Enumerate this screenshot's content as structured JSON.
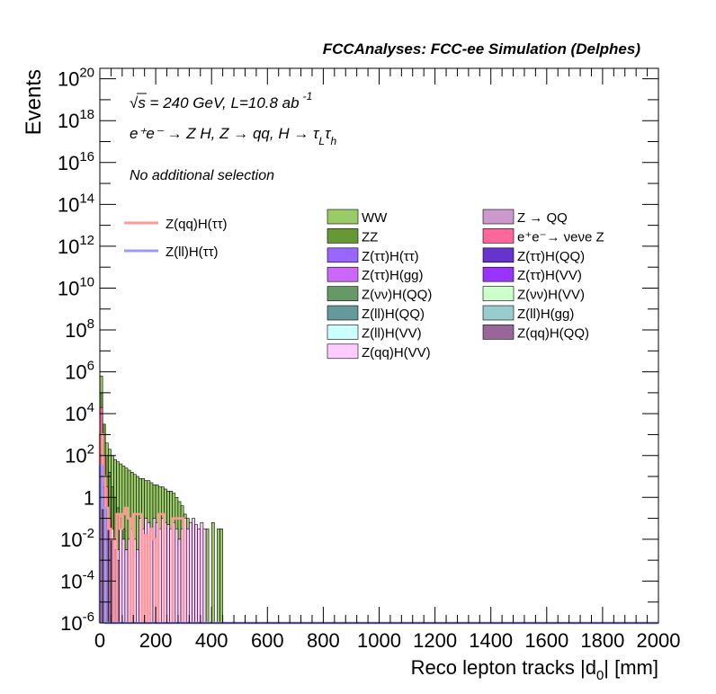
{
  "header": {
    "title": "FCCAnalyses: FCC-ee Simulation (Delphes)"
  },
  "annotations": {
    "energy_line": "√s = 240 GeV, L=10.8 ab",
    "energy_exp": "-1",
    "process_line": "e⁺e⁻ → Z H, Z → qq, H → τ",
    "process_sub1": "L",
    "process_tau": "τ",
    "process_sub2": "h",
    "selection": "No additional selection"
  },
  "chart_data": {
    "type": "bar",
    "title": "FCCAnalyses: FCC-ee Simulation (Delphes)",
    "xlabel": "Reco lepton tracks |d0| [mm]",
    "xlabel_main": "Reco lepton tracks |d",
    "xlabel_sub": "0",
    "xlabel_tail": "| [mm]",
    "ylabel": "Events",
    "xlim": [
      0,
      2000
    ],
    "ylim_log10": [
      -6,
      20.5
    ],
    "log_y": true,
    "grid": false,
    "legend_position": "top-right",
    "x_ticks": [
      0,
      200,
      400,
      600,
      800,
      1000,
      1200,
      1400,
      1600,
      1800,
      2000
    ],
    "y_ticks": [
      {
        "base": "10",
        "exp": "-6",
        "log": -6
      },
      {
        "base": "10",
        "exp": "-4",
        "log": -4
      },
      {
        "base": "10",
        "exp": "-2",
        "log": -2
      },
      {
        "base": "1",
        "exp": "",
        "log": 0
      },
      {
        "base": "10",
        "exp": "2",
        "log": 2
      },
      {
        "base": "10",
        "exp": "4",
        "log": 4
      },
      {
        "base": "10",
        "exp": "6",
        "log": 6
      },
      {
        "base": "10",
        "exp": "8",
        "log": 8
      },
      {
        "base": "10",
        "exp": "10",
        "log": 10
      },
      {
        "base": "10",
        "exp": "12",
        "log": 12
      },
      {
        "base": "10",
        "exp": "14",
        "log": 14
      },
      {
        "base": "10",
        "exp": "16",
        "log": 16
      },
      {
        "base": "10",
        "exp": "18",
        "log": 18
      },
      {
        "base": "10",
        "exp": "20",
        "log": 20
      }
    ],
    "bin_width": 10,
    "stack_series": [
      {
        "name": "WW",
        "color": "#99cc66",
        "bins_log10": [
          5.8,
          3.2,
          2.6,
          2.3,
          2.0,
          1.8,
          1.7,
          1.6,
          1.5,
          1.4,
          1.3,
          1.2,
          1.1,
          1.0,
          0.9,
          0.9,
          0.8,
          0.8,
          0.7,
          0.6,
          0.6,
          0.5,
          0.5,
          0.4,
          0.3,
          0.3,
          0.2,
          0.0,
          -0.2,
          -0.4,
          -0.8,
          -1.0,
          -1.2,
          -1.5,
          -1.8,
          -2.0,
          -2.2,
          -2.5,
          -1.5,
          -6,
          -1.2,
          -6,
          -1.5,
          -1.5,
          -6,
          -6,
          -6,
          -6,
          -6,
          -6,
          -6,
          -6,
          -6,
          -6,
          -6,
          -6,
          -6,
          -6,
          -6,
          -6,
          -6,
          -6,
          -6,
          -6,
          -6,
          -6,
          -6,
          -6,
          -6,
          -6,
          -6,
          -6,
          -6,
          -6,
          -6,
          -6,
          -6,
          -6,
          -6,
          -6,
          -6,
          -6,
          -6,
          -6,
          -6,
          -6,
          -6,
          -6,
          -6,
          -6,
          -6,
          -6,
          -6,
          -6,
          -6,
          -6,
          -6,
          -6,
          -6,
          -6,
          -6,
          -6,
          -6,
          -6,
          -6,
          -6,
          -6,
          -6,
          -6,
          -6,
          -6,
          -6,
          -6,
          -6,
          -6,
          -6,
          -6,
          -6,
          -6,
          -6
        ]
      },
      {
        "name": "ZZ",
        "color": "#669933",
        "bins_log10": [
          5.0,
          3.5,
          2.0,
          1.2,
          0.5,
          0.0,
          -0.5,
          -1.0,
          -1.5,
          -2.5,
          -3.0,
          -6,
          -6,
          -6,
          -6,
          -6,
          -6,
          -6,
          -6,
          -6,
          -6,
          -6,
          -6,
          -6,
          -6,
          -6,
          -6,
          -6,
          -6,
          -6,
          -6,
          -6,
          -6,
          -6,
          -6,
          -6,
          -6,
          -6,
          -6,
          -6,
          -6,
          -6,
          -6,
          -6,
          -6,
          -6,
          -6,
          -6,
          -6,
          -6,
          -6,
          -6,
          -6,
          -6,
          -6,
          -6,
          -6,
          -6,
          -6,
          -6,
          -6,
          -6,
          -6,
          -6,
          -6,
          -6,
          -6,
          -6,
          -6,
          -6,
          -6,
          -6,
          -6,
          -6,
          -6,
          -6,
          -6,
          -6,
          -6,
          -6,
          -6,
          -6,
          -6,
          -6,
          -6,
          -6,
          -6,
          -6,
          -6,
          -6,
          -6,
          -6,
          -6,
          -6,
          -6,
          -6,
          -6,
          -6,
          -6,
          -6,
          -6,
          -6,
          -6,
          -6,
          -6,
          -6,
          -6,
          -6,
          -6,
          -6,
          -6,
          -6,
          -6,
          -6,
          -6,
          -6,
          -6,
          -6,
          -6,
          -6
        ]
      },
      {
        "name": "Z(ττ)H(ττ)",
        "color": "#9966ff",
        "bins_log10": [
          1.5,
          0.5,
          -1.0,
          -2.0,
          -6,
          -6,
          -6,
          -6,
          -6,
          -6,
          -6,
          -6,
          -6,
          -6,
          -6,
          -6,
          -6,
          -6,
          -6,
          -6,
          -6,
          -6,
          -6,
          -6,
          -6,
          -6,
          -6,
          -6,
          -6,
          -6,
          -6,
          -6,
          -6,
          -6,
          -6,
          -6,
          -6,
          -6,
          -6,
          -6,
          -6,
          -6,
          -6,
          -6,
          -6,
          -6,
          -6,
          -6,
          -6,
          -6,
          -6,
          -6,
          -6,
          -6,
          -6,
          -6,
          -6,
          -6,
          -6,
          -6,
          -6,
          -6,
          -6,
          -6,
          -6,
          -6,
          -6,
          -6,
          -6,
          -6,
          -6,
          -6,
          -6,
          -6,
          -6,
          -6,
          -6,
          -6,
          -6,
          -6,
          -6,
          -6,
          -6,
          -6,
          -6,
          -6,
          -6,
          -6,
          -6,
          -6,
          -6,
          -6,
          -6,
          -6,
          -6,
          -6,
          -6,
          -6,
          -6,
          -6,
          -6,
          -6,
          -6,
          -6,
          -6,
          -6,
          -6,
          -6,
          -6,
          -6,
          -6,
          -6,
          -6,
          -6,
          -6,
          -6,
          -6,
          -6,
          -6,
          -6
        ]
      },
      {
        "name": "Z(qq)H(VV)",
        "color": "#ffccff",
        "bins_log10": [
          3.8,
          1.5,
          0.0,
          -1.0,
          -1.5,
          -2.0,
          -2.5,
          -1.5,
          -2.0,
          -2.5,
          -2.0,
          -1.5,
          -2.0,
          -2.5,
          -1.0,
          -1.5,
          -1.0,
          -1.2,
          -1.5,
          -1.0,
          -1.2,
          -1.5,
          -1.0,
          -1.2,
          -1.3,
          -1.5,
          -1.2,
          -1.5,
          -2.0,
          -1.5,
          -1.0,
          -1.5,
          -1.2,
          -1.0,
          -1.3,
          -1.5,
          -1.2,
          -1.5,
          -6,
          -6,
          -6,
          -6,
          -6,
          -6,
          -6,
          -6,
          -6,
          -6,
          -6,
          -6,
          -6,
          -6,
          -6,
          -6,
          -6,
          -6,
          -6,
          -6,
          -6,
          -6,
          -6,
          -6,
          -6,
          -6,
          -6,
          -6,
          -6,
          -6,
          -6,
          -6,
          -6,
          -6,
          -6,
          -6,
          -6,
          -6,
          -6,
          -6,
          -6,
          -6,
          -6,
          -6,
          -6,
          -6,
          -6,
          -6,
          -6,
          -6,
          -6,
          -6,
          -6,
          -6,
          -6,
          -6,
          -6,
          -6,
          -6,
          -6,
          -6,
          -6,
          -6,
          -6,
          -6,
          -6,
          -6,
          -6,
          -6,
          -6,
          -6,
          -6,
          -6,
          -6,
          -6,
          -6,
          -6,
          -6,
          -6,
          -6,
          -6,
          -6
        ]
      },
      {
        "name": "e⁺e⁻→ νeνe Z",
        "color": "#ff6699",
        "bins_log10": [
          4.3,
          2.0,
          0.5,
          -1.0,
          -2.0,
          -6,
          -6,
          -6,
          -6,
          -6,
          -6,
          -6,
          -6,
          -6,
          -6,
          -6,
          -6,
          -6,
          -6,
          -6,
          -6,
          -6,
          -6,
          -6,
          -6,
          -6,
          -6,
          -6,
          -6,
          -6,
          -6,
          -6,
          -6,
          -6,
          -6,
          -6,
          -6,
          -6,
          -6,
          -6,
          -6,
          -6,
          -6,
          -6,
          -6,
          -6,
          -6,
          -6,
          -6,
          -6,
          -6,
          -6,
          -6,
          -6,
          -6,
          -6,
          -6,
          -6,
          -6,
          -6,
          -6,
          -6,
          -6,
          -6,
          -6,
          -6,
          -6,
          -6,
          -6,
          -6,
          -6,
          -6,
          -6,
          -6,
          -6,
          -6,
          -6,
          -6,
          -6,
          -6,
          -6,
          -6,
          -6,
          -6,
          -6,
          -6,
          -6,
          -6,
          -6,
          -6,
          -6,
          -6,
          -6,
          -6,
          -6,
          -6,
          -6,
          -6,
          -6,
          -6,
          -6,
          -6,
          -6,
          -6,
          -6,
          -6,
          -6,
          -6,
          -6,
          -6,
          -6,
          -6,
          -6,
          -6,
          -6,
          -6,
          -6,
          -6,
          -6,
          -6
        ]
      },
      {
        "name": "Z(qq)H(QQ)",
        "color": "#996699",
        "bins_log10": [
          2.0,
          0.5,
          -0.5,
          -1.5,
          -2.0,
          -2.5,
          -3.0,
          -6,
          -6,
          -6,
          -6,
          -6,
          -6,
          -6,
          -6,
          -6,
          -6,
          -6,
          -6,
          -6,
          -6,
          -6,
          -6,
          -6,
          -6,
          -6,
          -6,
          -6,
          -6,
          -6,
          -6,
          -6,
          -6,
          -6,
          -6,
          -6,
          -6,
          -6,
          -6,
          -6,
          -6,
          -6,
          -6,
          -6,
          -6,
          -6,
          -6,
          -6,
          -6,
          -6,
          -6,
          -6,
          -6,
          -6,
          -6,
          -6,
          -6,
          -6,
          -6,
          -6,
          -6,
          -6,
          -6,
          -6,
          -6,
          -6,
          -6,
          -6,
          -6,
          -6,
          -6,
          -6,
          -6,
          -6,
          -6,
          -6,
          -6,
          -6,
          -6,
          -6,
          -6,
          -6,
          -6,
          -6,
          -6,
          -6,
          -6,
          -6,
          -6,
          -6,
          -6,
          -6,
          -6,
          -6,
          -6,
          -6,
          -6,
          -6,
          -6,
          -6,
          -6,
          -6,
          -6,
          -6,
          -6,
          -6,
          -6,
          -6,
          -6,
          -6,
          -6,
          -6,
          -6,
          -6,
          -6,
          -6,
          -6,
          -6,
          -6,
          -6
        ]
      }
    ],
    "line_series": [
      {
        "name": "Z(qq)H(ττ)",
        "color": "#ff9999",
        "bins_log10": [
          3.0,
          1.0,
          -0.5,
          -1.5,
          -2.0,
          -6,
          -0.8,
          -1.5,
          -0.8,
          -0.5,
          -1.0,
          -6,
          -0.8,
          -0.8,
          -0.8,
          -6,
          -1.8,
          -6,
          -1.5,
          -2.0,
          -6,
          -0.8,
          -0.8,
          -6,
          -6,
          -6,
          -1.0,
          -1.0,
          -1.0,
          -1.0,
          -6,
          -6,
          -6,
          -6,
          -6,
          -6,
          -6,
          -6,
          -6,
          -6,
          -6,
          -6,
          -6,
          -6,
          -6,
          -6,
          -6,
          -6,
          -6,
          -6,
          -6,
          -6,
          -6,
          -6,
          -6,
          -6,
          -6,
          -6,
          -6,
          -6,
          -6,
          -6,
          -6,
          -6,
          -6,
          -6,
          -6,
          -6,
          -6,
          -6,
          -6,
          -6,
          -6,
          -6,
          -6,
          -6,
          -6,
          -6,
          -6,
          -6,
          -6,
          -6,
          -6,
          -6,
          -6,
          -6,
          -6,
          -6,
          -6,
          -6,
          -6,
          -6,
          -6,
          -6,
          -6,
          -6,
          -6,
          -6,
          -6,
          -6,
          -6,
          -6,
          -6,
          -6,
          -6,
          -6,
          -6,
          -6,
          -6,
          -6,
          -6,
          -6,
          -6,
          -6,
          -6,
          -6,
          -6,
          -6,
          -6,
          -6
        ]
      },
      {
        "name": "Z(ll)H(ττ)",
        "color": "#9999ff",
        "bins_log10": [
          1.5,
          -0.5,
          -6,
          -6,
          -6,
          -6,
          -6,
          -6,
          -6,
          -6,
          -6,
          -6,
          -6,
          -6,
          -6,
          -6,
          -6,
          -6,
          -6,
          -6,
          -6,
          -6,
          -6,
          -6,
          -6,
          -6,
          -6,
          -6,
          -6,
          -6,
          -6,
          -6,
          -6,
          -6,
          -6,
          -6,
          -6,
          -6,
          -6,
          -6,
          -6,
          -6,
          -6,
          -6,
          -6,
          -6,
          -6,
          -6,
          -6,
          -6,
          -6,
          -6,
          -6,
          -6,
          -6,
          -6,
          -6,
          -6,
          -6,
          -6,
          -6,
          -6,
          -6,
          -6,
          -6,
          -6,
          -6,
          -6,
          -6,
          -6,
          -6,
          -6,
          -6,
          -6,
          -6,
          -6,
          -6,
          -6,
          -6,
          -6,
          -6,
          -6,
          -6,
          -6,
          -6,
          -6,
          -6,
          -6,
          -6,
          -6,
          -6,
          -6,
          -6,
          -6,
          -6,
          -6,
          -6,
          -6,
          -6,
          -6,
          -6,
          -6,
          -6,
          -6,
          -6,
          -6,
          -6,
          -6,
          -6,
          -6,
          -6,
          -6,
          -6,
          -6,
          -6,
          -6,
          -6,
          -6,
          -6,
          -6
        ]
      }
    ],
    "legend_lines": [
      {
        "label": "Z(qq)H(ττ)",
        "color": "#ff9999"
      },
      {
        "label": "Z(ll)H(ττ)",
        "color": "#9999ff"
      }
    ],
    "legend_col1": [
      {
        "label": "WW",
        "color": "#99cc66"
      },
      {
        "label": "ZZ",
        "color": "#669933"
      },
      {
        "label": "Z(ττ)H(ττ)",
        "color": "#9966ff"
      },
      {
        "label": "Z(ττ)H(gg)",
        "color": "#cc66ff"
      },
      {
        "label": "Z(νν)H(QQ)",
        "color": "#669966"
      },
      {
        "label": "Z(ll)H(QQ)",
        "color": "#669999"
      },
      {
        "label": "Z(ll)H(VV)",
        "color": "#ccffff"
      },
      {
        "label": "Z(qq)H(VV)",
        "color": "#ffccff"
      }
    ],
    "legend_col2": [
      {
        "label": "Z → QQ",
        "color": "#cc99cc"
      },
      {
        "label": "e⁺e⁻→ νeνe Z",
        "color": "#ff6699"
      },
      {
        "label": "Z(ττ)H(QQ)",
        "color": "#6633cc"
      },
      {
        "label": "Z(ττ)H(VV)",
        "color": "#9933ff"
      },
      {
        "label": "Z(νν)H(VV)",
        "color": "#ccffcc"
      },
      {
        "label": "Z(ll)H(gg)",
        "color": "#99cccc"
      },
      {
        "label": "Z(qq)H(QQ)",
        "color": "#996699"
      }
    ]
  }
}
